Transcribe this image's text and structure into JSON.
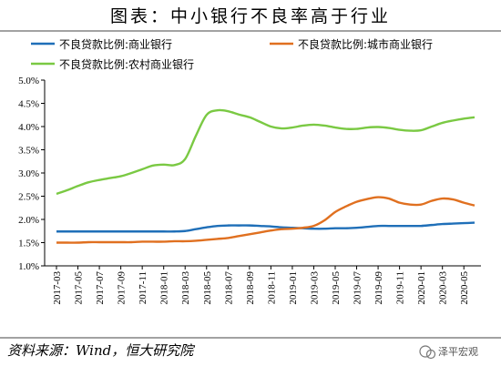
{
  "chart_data": {
    "type": "line",
    "title": "图表：中小银行不良率高于行业",
    "source": "资料来源：Wind，恒大研究院",
    "watermark": "泽平宏观",
    "ylim": [
      0.01,
      0.05
    ],
    "yticks": [
      "1.0%",
      "1.5%",
      "2.0%",
      "2.5%",
      "3.0%",
      "3.5%",
      "4.0%",
      "4.5%",
      "5.0%"
    ],
    "x": [
      "2017-03",
      "2017-04",
      "2017-05",
      "2017-06",
      "2017-07",
      "2017-08",
      "2017-09",
      "2017-10",
      "2017-11",
      "2017-12",
      "2018-01",
      "2018-02",
      "2018-03",
      "2018-04",
      "2018-05",
      "2018-06",
      "2018-07",
      "2018-08",
      "2018-09",
      "2018-10",
      "2018-11",
      "2018-12",
      "2019-01",
      "2019-02",
      "2019-03",
      "2019-04",
      "2019-05",
      "2019-06",
      "2019-07",
      "2019-08",
      "2019-09",
      "2019-10",
      "2019-11",
      "2019-12",
      "2020-01",
      "2020-02",
      "2020-03",
      "2020-04",
      "2020-05",
      "2020-06"
    ],
    "xtick_labels": [
      "2017-03",
      "2017-05",
      "2017-07",
      "2017-09",
      "2017-11",
      "2018-01",
      "2018-03",
      "2018-05",
      "2018-07",
      "2018-09",
      "2018-11",
      "2019-01",
      "2019-03",
      "2019-05",
      "2019-07",
      "2019-09",
      "2019-11",
      "2020-01",
      "2020-03",
      "2020-05"
    ],
    "legend_placement": "top",
    "grid": false,
    "series": [
      {
        "name": "不良贷款比例:商业银行",
        "color": "#1f6fb8",
        "values": [
          0.0174,
          0.0174,
          0.0174,
          0.0174,
          0.0174,
          0.0174,
          0.0174,
          0.0174,
          0.0174,
          0.0174,
          0.0174,
          0.0174,
          0.0175,
          0.0179,
          0.0183,
          0.0186,
          0.0187,
          0.0187,
          0.0187,
          0.0186,
          0.0185,
          0.0183,
          0.0182,
          0.0181,
          0.018,
          0.018,
          0.0181,
          0.0181,
          0.0182,
          0.0184,
          0.0186,
          0.0186,
          0.0186,
          0.0186,
          0.0186,
          0.0188,
          0.019,
          0.0191,
          0.0192,
          0.0193
        ]
      },
      {
        "name": "不良贷款比例:城市商业银行",
        "color": "#e07020",
        "values": [
          0.015,
          0.015,
          0.015,
          0.0151,
          0.0151,
          0.0151,
          0.0151,
          0.0151,
          0.0152,
          0.0152,
          0.0152,
          0.0153,
          0.0153,
          0.0154,
          0.0156,
          0.0158,
          0.016,
          0.0164,
          0.0168,
          0.0172,
          0.0176,
          0.0179,
          0.018,
          0.0182,
          0.0186,
          0.0198,
          0.0216,
          0.0228,
          0.0238,
          0.0244,
          0.0248,
          0.0245,
          0.0236,
          0.0232,
          0.0232,
          0.024,
          0.0245,
          0.0243,
          0.0236,
          0.023
        ]
      },
      {
        "name": "不良贷款比例:农村商业银行",
        "color": "#7ac943",
        "values": [
          0.0255,
          0.0263,
          0.0272,
          0.028,
          0.0285,
          0.0289,
          0.0293,
          0.03,
          0.0308,
          0.0316,
          0.0318,
          0.0317,
          0.033,
          0.038,
          0.0425,
          0.0435,
          0.0433,
          0.0426,
          0.042,
          0.041,
          0.04,
          0.0396,
          0.0398,
          0.0402,
          0.0404,
          0.0402,
          0.0398,
          0.0395,
          0.0395,
          0.0398,
          0.0399,
          0.0397,
          0.0393,
          0.0391,
          0.0392,
          0.04,
          0.0408,
          0.0413,
          0.0417,
          0.042
        ]
      }
    ]
  }
}
